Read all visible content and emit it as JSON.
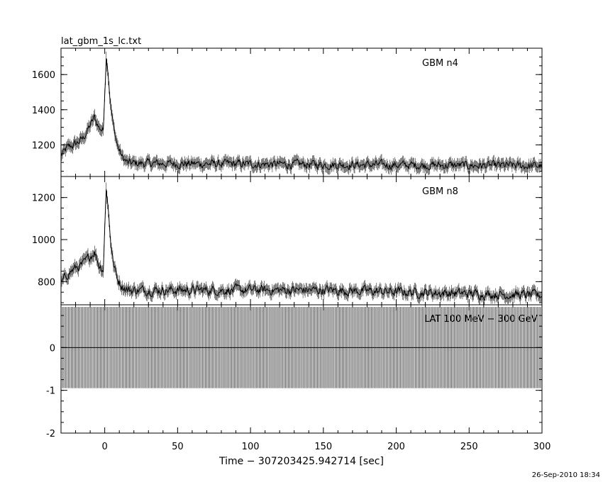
{
  "chart_data": {
    "type": "line",
    "title": "lat_gbm_1s_lc.txt",
    "xlabel": "Time − 307203425.942714 [sec]",
    "xlim": [
      -30,
      300
    ],
    "x_ticks": [
      0,
      50,
      100,
      150,
      200,
      250,
      300
    ],
    "date_stamp": "26-Sep-2010 18:34",
    "panels": [
      {
        "name": "GBM n4",
        "ylim": [
          1020,
          1750
        ],
        "y_ticks": [
          1200,
          1400,
          1600
        ],
        "baseline": 1085,
        "noise": 30,
        "profile": [
          [
            -30,
            1140
          ],
          [
            -25,
            1185
          ],
          [
            -20,
            1205
          ],
          [
            -15,
            1235
          ],
          [
            -10,
            1310
          ],
          [
            -7,
            1355
          ],
          [
            -4,
            1300
          ],
          [
            -1,
            1280
          ],
          [
            0,
            1500
          ],
          [
            1,
            1700
          ],
          [
            2,
            1650
          ],
          [
            4,
            1430
          ],
          [
            6,
            1300
          ],
          [
            9,
            1190
          ],
          [
            12,
            1130
          ],
          [
            16,
            1095
          ],
          [
            300,
            1080
          ]
        ]
      },
      {
        "name": "GBM n8",
        "ylim": [
          690,
          1300
        ],
        "y_ticks": [
          800,
          1000,
          1200
        ],
        "baseline": 750,
        "noise": 28,
        "profile": [
          [
            -30,
            790
          ],
          [
            -25,
            840
          ],
          [
            -20,
            865
          ],
          [
            -15,
            880
          ],
          [
            -10,
            920
          ],
          [
            -7,
            945
          ],
          [
            -4,
            880
          ],
          [
            -1,
            860
          ],
          [
            0,
            1050
          ],
          [
            1,
            1250
          ],
          [
            2,
            1180
          ],
          [
            4,
            1000
          ],
          [
            6,
            880
          ],
          [
            9,
            810
          ],
          [
            12,
            780
          ],
          [
            16,
            760
          ],
          [
            150,
            760
          ],
          [
            300,
            735
          ]
        ]
      },
      {
        "name": "LAT 100 MeV − 300 GeV",
        "ylim": [
          -2,
          1
        ],
        "y_ticks": [
          -2,
          -1,
          0
        ],
        "value": 0,
        "error": 0.95
      }
    ]
  }
}
